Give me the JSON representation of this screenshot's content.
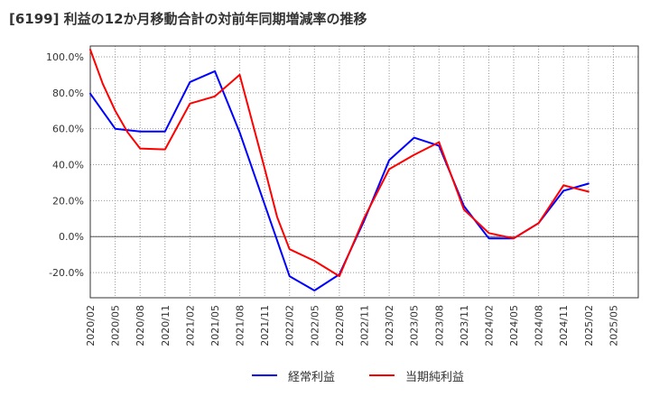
{
  "chart_data": {
    "type": "line",
    "title": "[6199]  利益の12か月移動合計の対前年同期増減率の推移",
    "xlabel": "",
    "ylabel": "",
    "ylim": [
      -34,
      106
    ],
    "yticks": [
      -20,
      0,
      20,
      40,
      60,
      80,
      100
    ],
    "ytick_labels": [
      "-20.0%",
      "0.0%",
      "20.0%",
      "40.0%",
      "60.0%",
      "80.0%",
      "100.0%"
    ],
    "x_count": 22,
    "x_labels": [
      "2020/02",
      "2020/05",
      "2020/08",
      "2020/11",
      "2021/02",
      "2021/05",
      "2021/08",
      "2021/11",
      "2022/02",
      "2022/05",
      "2022/08",
      "2022/11",
      "2023/02",
      "2023/05",
      "2023/08",
      "2023/11",
      "2024/02",
      "2024/05",
      "2024/08",
      "2024/11",
      "2025/02",
      "2025/05"
    ],
    "grid": true,
    "legend_position": "bottom",
    "series": [
      {
        "name": "経常利益",
        "color": "#0000ff",
        "x": [
          0,
          1,
          2,
          3,
          4,
          5,
          6,
          7,
          8,
          9,
          10,
          11,
          12,
          13,
          14,
          15,
          16,
          17,
          18,
          19,
          20
        ],
        "values": [
          79.5,
          60.0,
          58.5,
          58.5,
          86.0,
          92.0,
          58.0,
          18.0,
          -22.0,
          -30.0,
          -21.0,
          9.0,
          42.5,
          55.0,
          50.5,
          17.0,
          -1.0,
          -1.0,
          7.5,
          25.5,
          29.5
        ]
      },
      {
        "name": "当期純利益",
        "color": "#ff0000",
        "x": [
          0,
          0.5,
          1,
          1.5,
          2,
          3,
          4,
          5,
          6,
          7,
          7.5,
          8,
          9,
          10,
          11,
          12,
          13,
          14,
          15,
          16,
          17,
          18,
          19,
          20
        ],
        "values": [
          104.0,
          85.0,
          70.0,
          58.0,
          49.0,
          48.5,
          74.0,
          78.0,
          90.0,
          38.0,
          11.0,
          -7.0,
          -13.5,
          -22.0,
          10.5,
          37.5,
          45.5,
          52.5,
          15.0,
          2.0,
          -1.0,
          7.5,
          28.5,
          25.0
        ]
      }
    ]
  }
}
